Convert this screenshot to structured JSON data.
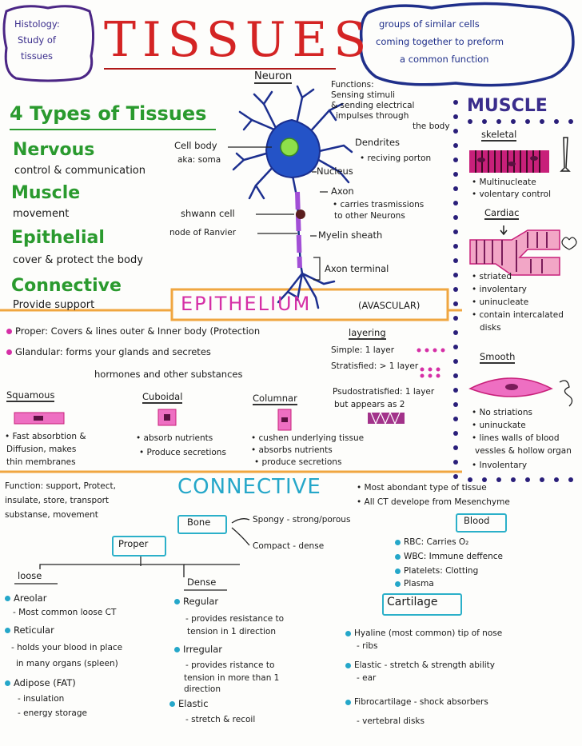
{
  "header": {
    "histology_box": [
      "Histology:",
      "Study of",
      "tissues"
    ],
    "title": "TISSUES",
    "definition_cloud": [
      "groups of similar cells",
      "coming together to preform",
      "a common function"
    ]
  },
  "types": {
    "heading": "4 Types of Tissues",
    "items": [
      {
        "name": "Nervous",
        "desc": "control & communication"
      },
      {
        "name": "Muscle",
        "desc": "movement"
      },
      {
        "name": "Epithelial",
        "desc": "cover & protect the body"
      },
      {
        "name": "Connective",
        "desc": "Provide support"
      }
    ]
  },
  "neuron": {
    "title": "Neuron",
    "functions": [
      "Functions:",
      "Sensing stimuli",
      "& sending electrical",
      "impulses through",
      "the body"
    ],
    "dendrites": [
      "Dendrites",
      "• reciving porton"
    ],
    "cell_body": [
      "Cell body",
      "aka: soma"
    ],
    "nucleus": "Nucleus",
    "axon": [
      "Axon",
      "• carries trasmissions",
      "to other Neurons"
    ],
    "schwann": "shwann cell",
    "ranvier": "node of Ranvier",
    "myelin": "Myelin sheath",
    "terminal": "Axon terminal"
  },
  "muscle": {
    "title": "MUSCLE",
    "skeletal": {
      "label": "skeletal",
      "points": [
        "• Multinucleate",
        "• volentary control"
      ]
    },
    "cardiac": {
      "label": "Cardiac",
      "points": [
        "• striated",
        "• involentary",
        "• uninucleate",
        "• contain intercalated",
        "disks"
      ]
    },
    "smooth": {
      "label": "Smooth",
      "points": [
        "• No striations",
        "• uninuckate",
        "• lines walls of blood",
        "vessles & hollow organ",
        "• Involentary"
      ]
    }
  },
  "epithelium": {
    "title": "EPITHELIUM",
    "subtitle": "(AVASCULAR)",
    "proper": "Proper: Covers & lines outer & Inner body (Protection",
    "glandular": [
      "Glandular: forms your glands and secretes",
      "hormones and other substances"
    ],
    "layering": {
      "title": "layering",
      "simple": "Simple: 1 layer",
      "stratified": "Stratisfied: > 1 layer",
      "pseudo": [
        "Psudostratisfied: 1 layer",
        "but appears as 2"
      ]
    },
    "shapes": [
      {
        "name": "Squamous",
        "points": [
          "• Fast absorbtion &",
          "Diffusion, makes",
          "thin membranes"
        ]
      },
      {
        "name": "Cuboidal",
        "points": [
          "• absorb nutrients",
          "• Produce secretions"
        ]
      },
      {
        "name": "Columnar",
        "points": [
          "• cushen underlying tissue",
          "• absorbs nutrients",
          "• produce secretions"
        ]
      }
    ]
  },
  "connective": {
    "title": "CONNECTIVE",
    "function": [
      "Function: support, Protect,",
      "insulate, store, transport",
      "substanse, movement"
    ],
    "facts": [
      "• Most abondant type of tissue",
      "• All CT develope from Mesenchyme"
    ],
    "bone": {
      "label": "Bone",
      "spongy": "Spongy - strong/porous",
      "compact": "Compact - dense"
    },
    "blood": {
      "label": "Blood",
      "items": [
        "RBC: Carries O₂",
        "WBC: Immune deffence",
        "Platelets: Clotting",
        "Plasma"
      ]
    },
    "proper": {
      "label": "Proper",
      "loose": {
        "label": "loose",
        "items": [
          {
            "name": "Areolar",
            "sub": [
              "- Most common loose CT"
            ]
          },
          {
            "name": "Reticular",
            "sub": [
              "- holds your blood in place",
              "in many organs (spleen)"
            ]
          },
          {
            "name": "Adipose (FAT)",
            "sub": [
              "- insulation",
              "- energy storage"
            ]
          }
        ]
      },
      "dense": {
        "label": "Dense",
        "items": [
          {
            "name": "Regular",
            "sub": [
              "- provides resistance to",
              "tension in 1 direction"
            ]
          },
          {
            "name": "Irregular",
            "sub": [
              "- provides ristance to",
              "tension in more than 1",
              "direction"
            ]
          },
          {
            "name": "Elastic",
            "sub": [
              "- stretch & recoil"
            ]
          }
        ]
      }
    },
    "cartilage": {
      "label": "Cartilage",
      "items": [
        {
          "name": "Hyaline (most common) tip of nose",
          "sub": "- ribs"
        },
        {
          "name": "Elastic - stretch & strength ability",
          "sub": "- ear"
        },
        {
          "name": "Fibrocartilage - shock absorbers",
          "sub": "- vertebral disks"
        }
      ]
    }
  },
  "colors": {
    "green": "#2a9a2e",
    "pink": "#d52fa6",
    "teal": "#25a7c9",
    "purple": "#3a2d8c",
    "orange": "#f0a640",
    "red": "#d42424"
  }
}
